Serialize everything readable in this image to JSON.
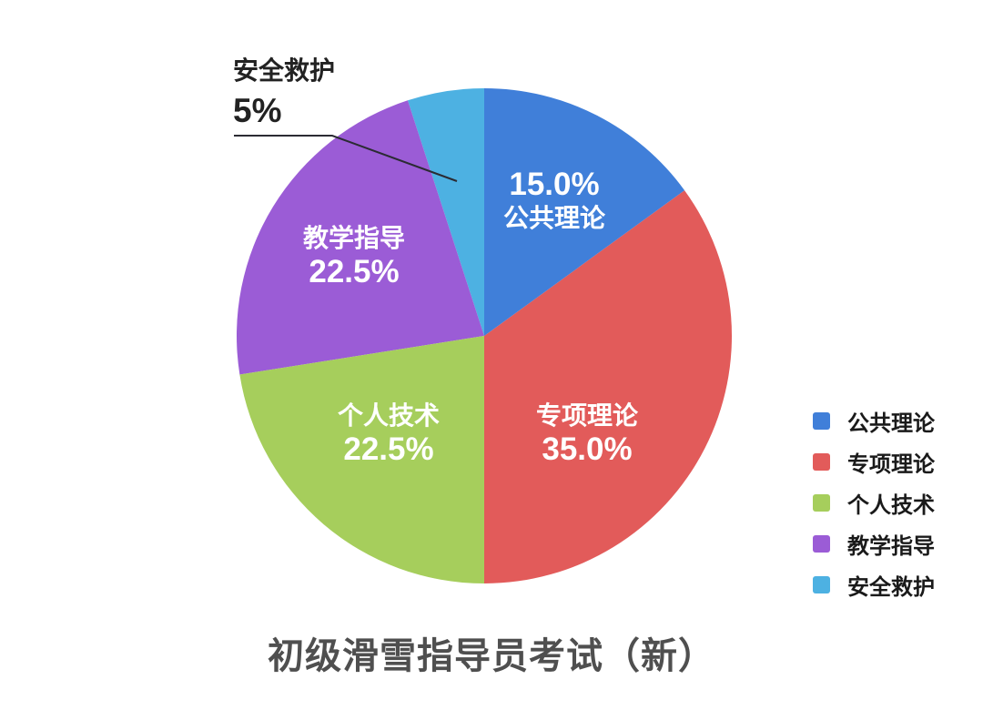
{
  "chart_data": {
    "type": "pie",
    "title": "初级滑雪指导员考试（新）",
    "legend_position": "right",
    "start_angle_deg": 0,
    "direction": "clockwise",
    "slices": [
      {
        "name": "公共理论",
        "value": 15.0,
        "percent_label": "15.0%",
        "color": "#407fd9",
        "label_placement": "inside"
      },
      {
        "name": "专项理论",
        "value": 35.0,
        "percent_label": "35.0%",
        "color": "#e25b5a",
        "label_placement": "inside"
      },
      {
        "name": "个人技术",
        "value": 22.5,
        "percent_label": "22.5%",
        "color": "#a6ce5c",
        "label_placement": "inside"
      },
      {
        "name": "教学指导",
        "value": 22.5,
        "percent_label": "22.5%",
        "color": "#9b5cd6",
        "label_placement": "inside"
      },
      {
        "name": "安全救护",
        "value": 5.0,
        "percent_label": "5%",
        "color": "#4db1e2",
        "label_placement": "outside-leader-line"
      }
    ]
  }
}
